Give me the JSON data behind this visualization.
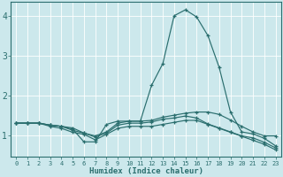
{
  "title": "",
  "xlabel": "Humidex (Indice chaleur)",
  "ylabel": "",
  "background_color": "#cce8ec",
  "grid_color": "#ffffff",
  "line_color": "#2a6e6e",
  "xlim": [
    -0.5,
    23.5
  ],
  "ylim": [
    0.45,
    4.35
  ],
  "xticks": [
    0,
    1,
    2,
    3,
    4,
    5,
    6,
    7,
    8,
    9,
    10,
    11,
    12,
    13,
    14,
    15,
    16,
    17,
    18,
    19,
    20,
    21,
    22,
    23
  ],
  "yticks": [
    1,
    2,
    3,
    4
  ],
  "lines": [
    [
      1.3,
      1.3,
      1.3,
      1.25,
      1.22,
      1.15,
      0.83,
      0.83,
      1.27,
      1.35,
      1.35,
      1.35,
      2.25,
      2.8,
      4.0,
      4.15,
      3.97,
      3.5,
      2.7,
      1.58,
      1.08,
      1.03,
      0.92,
      0.73
    ],
    [
      1.3,
      1.3,
      1.3,
      1.25,
      1.22,
      1.18,
      1.05,
      0.98,
      1.08,
      1.3,
      1.35,
      1.35,
      1.37,
      1.45,
      1.5,
      1.55,
      1.58,
      1.58,
      1.52,
      1.38,
      1.22,
      1.08,
      0.98,
      0.98
    ],
    [
      1.3,
      1.3,
      1.3,
      1.25,
      1.22,
      1.12,
      1.05,
      0.95,
      1.05,
      1.25,
      1.3,
      1.3,
      1.33,
      1.4,
      1.43,
      1.48,
      1.43,
      1.28,
      1.18,
      1.08,
      0.98,
      0.93,
      0.82,
      0.68
    ],
    [
      1.3,
      1.3,
      1.3,
      1.22,
      1.17,
      1.07,
      1.02,
      0.88,
      1.02,
      1.17,
      1.22,
      1.22,
      1.22,
      1.27,
      1.32,
      1.37,
      1.37,
      1.27,
      1.17,
      1.07,
      0.97,
      0.87,
      0.77,
      0.63
    ]
  ]
}
